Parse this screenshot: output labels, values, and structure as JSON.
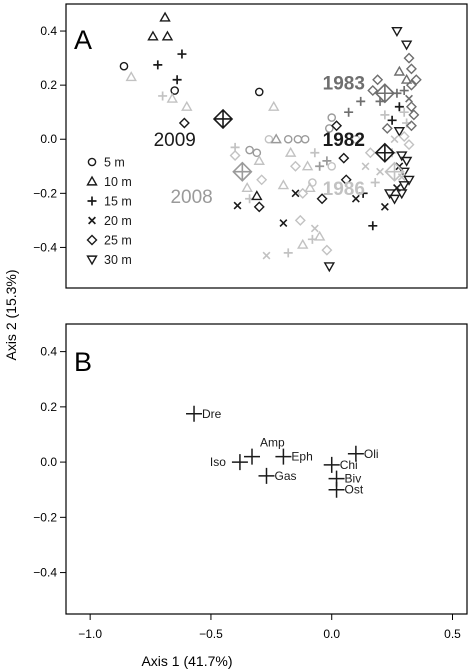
{
  "colors": {
    "black": "#1a1a1a",
    "dark_gray": "#6e6e6e",
    "mid_gray": "#9a9a9a",
    "light_gray": "#c2c2c2",
    "frame": "#000000"
  },
  "axes": {
    "y_label": "Axis 2 (15.3%)",
    "x_label": "Axis 1 (41.7%)",
    "x_ticks": [
      "−1.0",
      "−0.5",
      "0.0",
      "0.5"
    ],
    "x_tick_values": [
      -1.0,
      -0.5,
      0.0,
      0.5
    ],
    "y_ticks": [
      "0.4",
      "0.2",
      "0.0",
      "−0.2",
      "−0.4"
    ],
    "y_tick_values": [
      0.4,
      0.2,
      0.0,
      -0.2,
      -0.4
    ]
  },
  "chart_data": [
    {
      "type": "scatter",
      "panel_label": "A",
      "xlim": [
        -1.1,
        0.56
      ],
      "ylim": [
        -0.55,
        0.5
      ],
      "legend_position": "left",
      "legend": [
        {
          "label": "5 m",
          "marker": "circle"
        },
        {
          "label": "10 m",
          "marker": "triangle-up"
        },
        {
          "label": "15 m",
          "marker": "plus"
        },
        {
          "label": "20 m",
          "marker": "cross"
        },
        {
          "label": "25 m",
          "marker": "diamond"
        },
        {
          "label": "30 m",
          "marker": "triangle-down"
        }
      ],
      "year_labels": [
        {
          "text": "1983",
          "x": 0.05,
          "y": 0.21,
          "shade": "dark_gray"
        },
        {
          "text": "2009",
          "x": -0.65,
          "y": 0.0,
          "shade": "black"
        },
        {
          "text": "1982",
          "x": 0.05,
          "y": 0.0,
          "shade": "black"
        },
        {
          "text": "2008",
          "x": -0.58,
          "y": -0.21,
          "shade": "mid_gray"
        },
        {
          "text": "1986",
          "x": 0.05,
          "y": -0.18,
          "shade": "light_gray"
        }
      ],
      "centroids": [
        {
          "x": -0.45,
          "y": 0.075,
          "shade": "black"
        },
        {
          "x": -0.37,
          "y": -0.12,
          "shade": "mid_gray"
        },
        {
          "x": 0.22,
          "y": -0.05,
          "shade": "black"
        },
        {
          "x": 0.22,
          "y": 0.17,
          "shade": "dark_gray"
        },
        {
          "x": 0.26,
          "y": -0.12,
          "shade": "light_gray"
        }
      ],
      "points": [
        {
          "x": -0.86,
          "y": 0.27,
          "m": "circle",
          "s": "black"
        },
        {
          "x": -0.83,
          "y": 0.23,
          "m": "triangle-up",
          "s": "light_gray"
        },
        {
          "x": -0.74,
          "y": 0.38,
          "m": "triangle-up",
          "s": "black"
        },
        {
          "x": -0.69,
          "y": 0.45,
          "m": "triangle-up",
          "s": "black"
        },
        {
          "x": -0.68,
          "y": 0.38,
          "m": "triangle-up",
          "s": "black"
        },
        {
          "x": -0.72,
          "y": 0.275,
          "m": "plus",
          "s": "black"
        },
        {
          "x": -0.62,
          "y": 0.315,
          "m": "plus",
          "s": "black"
        },
        {
          "x": -0.64,
          "y": 0.22,
          "m": "plus",
          "s": "black"
        },
        {
          "x": -0.65,
          "y": 0.18,
          "m": "circle",
          "s": "black"
        },
        {
          "x": -0.66,
          "y": 0.15,
          "m": "triangle-up",
          "s": "light_gray"
        },
        {
          "x": -0.7,
          "y": 0.16,
          "m": "plus",
          "s": "light_gray"
        },
        {
          "x": -0.6,
          "y": 0.12,
          "m": "triangle-up",
          "s": "light_gray"
        },
        {
          "x": -0.61,
          "y": 0.06,
          "m": "diamond",
          "s": "black"
        },
        {
          "x": -0.3,
          "y": 0.175,
          "m": "circle",
          "s": "black"
        },
        {
          "x": -0.24,
          "y": 0.12,
          "m": "triangle-up",
          "s": "light_gray"
        },
        {
          "x": -0.4,
          "y": -0.06,
          "m": "diamond",
          "s": "light_gray"
        },
        {
          "x": -0.4,
          "y": -0.03,
          "m": "plus",
          "s": "light_gray"
        },
        {
          "x": -0.34,
          "y": -0.04,
          "m": "circle",
          "s": "mid_gray"
        },
        {
          "x": -0.31,
          "y": -0.05,
          "m": "circle",
          "s": "mid_gray"
        },
        {
          "x": -0.3,
          "y": -0.08,
          "m": "triangle-up",
          "s": "light_gray"
        },
        {
          "x": -0.29,
          "y": -0.15,
          "m": "diamond",
          "s": "light_gray"
        },
        {
          "x": -0.35,
          "y": -0.18,
          "m": "triangle-up",
          "s": "light_gray"
        },
        {
          "x": -0.39,
          "y": -0.245,
          "m": "cross",
          "s": "black"
        },
        {
          "x": -0.34,
          "y": -0.22,
          "m": "plus",
          "s": "light_gray"
        },
        {
          "x": -0.31,
          "y": -0.21,
          "m": "triangle-up",
          "s": "black"
        },
        {
          "x": -0.3,
          "y": -0.25,
          "m": "diamond",
          "s": "black"
        },
        {
          "x": -0.26,
          "y": 0.0,
          "m": "circle",
          "s": "light_gray"
        },
        {
          "x": -0.23,
          "y": 0.0,
          "m": "triangle-up",
          "s": "mid_gray"
        },
        {
          "x": -0.17,
          "y": -0.05,
          "m": "triangle-up",
          "s": "light_gray"
        },
        {
          "x": -0.15,
          "y": -0.1,
          "m": "diamond",
          "s": "light_gray"
        },
        {
          "x": -0.1,
          "y": -0.1,
          "m": "triangle-up",
          "s": "light_gray"
        },
        {
          "x": -0.09,
          "y": -0.18,
          "m": "triangle-up",
          "s": "light_gray"
        },
        {
          "x": -0.08,
          "y": -0.16,
          "m": "circle",
          "s": "light_gray"
        },
        {
          "x": -0.15,
          "y": -0.2,
          "m": "cross",
          "s": "black"
        },
        {
          "x": -0.04,
          "y": -0.22,
          "m": "diamond",
          "s": "black"
        },
        {
          "x": -0.2,
          "y": -0.31,
          "m": "cross",
          "s": "black"
        },
        {
          "x": -0.13,
          "y": -0.3,
          "m": "diamond",
          "s": "light_gray"
        },
        {
          "x": -0.07,
          "y": -0.33,
          "m": "cross",
          "s": "light_gray"
        },
        {
          "x": -0.08,
          "y": -0.37,
          "m": "plus",
          "s": "light_gray"
        },
        {
          "x": -0.12,
          "y": -0.39,
          "m": "triangle-up",
          "s": "light_gray"
        },
        {
          "x": -0.18,
          "y": -0.42,
          "m": "plus",
          "s": "light_gray"
        },
        {
          "x": -0.27,
          "y": -0.43,
          "m": "cross",
          "s": "light_gray"
        },
        {
          "x": -0.2,
          "y": -0.17,
          "m": "triangle-up",
          "s": "light_gray"
        },
        {
          "x": -0.12,
          "y": -0.2,
          "m": "diamond",
          "s": "light_gray"
        },
        {
          "x": -0.05,
          "y": -0.36,
          "m": "triangle-up",
          "s": "light_gray"
        },
        {
          "x": -0.02,
          "y": -0.41,
          "m": "diamond",
          "s": "light_gray"
        },
        {
          "x": -0.14,
          "y": 0.0,
          "m": "circle",
          "s": "mid_gray"
        },
        {
          "x": -0.11,
          "y": 0.0,
          "m": "circle",
          "s": "mid_gray"
        },
        {
          "x": -0.18,
          "y": 0.0,
          "m": "circle",
          "s": "mid_gray"
        },
        {
          "x": -0.05,
          "y": -0.1,
          "m": "plus",
          "s": "mid_gray"
        },
        {
          "x": -0.02,
          "y": -0.08,
          "m": "plus",
          "s": "mid_gray"
        },
        {
          "x": -0.07,
          "y": -0.05,
          "m": "plus",
          "s": "light_gray"
        },
        {
          "x": -0.01,
          "y": 0.04,
          "m": "circle",
          "s": "mid_gray"
        },
        {
          "x": 0.0,
          "y": 0.08,
          "m": "circle",
          "s": "mid_gray"
        },
        {
          "x": 0.02,
          "y": 0.05,
          "m": "diamond",
          "s": "black"
        },
        {
          "x": 0.05,
          "y": -0.07,
          "m": "diamond",
          "s": "black"
        },
        {
          "x": 0.06,
          "y": -0.15,
          "m": "diamond",
          "s": "black"
        },
        {
          "x": 0.1,
          "y": -0.22,
          "m": "cross",
          "s": "black"
        },
        {
          "x": 0.13,
          "y": -0.2,
          "m": "plus",
          "s": "black"
        },
        {
          "x": 0.17,
          "y": -0.32,
          "m": "plus",
          "s": "black"
        },
        {
          "x": 0.2,
          "y": -0.12,
          "m": "cross",
          "s": "light_gray"
        },
        {
          "x": -0.01,
          "y": -0.47,
          "m": "triangle-down",
          "s": "black"
        },
        {
          "x": 0.0,
          "y": -0.1,
          "m": "circle",
          "s": "light_gray"
        },
        {
          "x": 0.07,
          "y": 0.1,
          "m": "plus",
          "s": "dark_gray"
        },
        {
          "x": 0.12,
          "y": 0.14,
          "m": "plus",
          "s": "dark_gray"
        },
        {
          "x": 0.17,
          "y": 0.18,
          "m": "diamond",
          "s": "dark_gray"
        },
        {
          "x": 0.19,
          "y": 0.22,
          "m": "diamond",
          "s": "dark_gray"
        },
        {
          "x": 0.2,
          "y": 0.14,
          "m": "plus",
          "s": "dark_gray"
        },
        {
          "x": 0.23,
          "y": 0.04,
          "m": "diamond",
          "s": "dark_gray"
        },
        {
          "x": 0.25,
          "y": 0.07,
          "m": "plus",
          "s": "black"
        },
        {
          "x": 0.28,
          "y": 0.12,
          "m": "plus",
          "s": "black"
        },
        {
          "x": 0.27,
          "y": 0.4,
          "m": "triangle-down",
          "s": "black"
        },
        {
          "x": 0.31,
          "y": 0.35,
          "m": "triangle-down",
          "s": "black"
        },
        {
          "x": 0.32,
          "y": 0.3,
          "m": "diamond",
          "s": "dark_gray"
        },
        {
          "x": 0.33,
          "y": 0.26,
          "m": "diamond",
          "s": "dark_gray"
        },
        {
          "x": 0.31,
          "y": 0.22,
          "m": "triangle-up",
          "s": "dark_gray"
        },
        {
          "x": 0.33,
          "y": 0.2,
          "m": "diamond",
          "s": "dark_gray"
        },
        {
          "x": 0.35,
          "y": 0.22,
          "m": "diamond",
          "s": "dark_gray"
        },
        {
          "x": 0.3,
          "y": 0.18,
          "m": "plus",
          "s": "dark_gray"
        },
        {
          "x": 0.32,
          "y": 0.15,
          "m": "cross",
          "s": "dark_gray"
        },
        {
          "x": 0.33,
          "y": 0.12,
          "m": "diamond",
          "s": "dark_gray"
        },
        {
          "x": 0.3,
          "y": 0.1,
          "m": "plus",
          "s": "light_gray"
        },
        {
          "x": 0.34,
          "y": 0.09,
          "m": "diamond",
          "s": "dark_gray"
        },
        {
          "x": 0.31,
          "y": 0.06,
          "m": "plus",
          "s": "light_gray"
        },
        {
          "x": 0.33,
          "y": 0.05,
          "m": "diamond",
          "s": "dark_gray"
        },
        {
          "x": 0.28,
          "y": 0.03,
          "m": "triangle-down",
          "s": "black"
        },
        {
          "x": 0.3,
          "y": 0.01,
          "m": "diamond",
          "s": "light_gray"
        },
        {
          "x": 0.26,
          "y": 0.0,
          "m": "cross",
          "s": "light_gray"
        },
        {
          "x": 0.32,
          "y": -0.02,
          "m": "diamond",
          "s": "light_gray"
        },
        {
          "x": 0.29,
          "y": -0.06,
          "m": "triangle-down",
          "s": "black"
        },
        {
          "x": 0.31,
          "y": -0.08,
          "m": "triangle-down",
          "s": "black"
        },
        {
          "x": 0.28,
          "y": -0.1,
          "m": "cross",
          "s": "black"
        },
        {
          "x": 0.3,
          "y": -0.12,
          "m": "triangle-down",
          "s": "black"
        },
        {
          "x": 0.32,
          "y": -0.15,
          "m": "triangle-down",
          "s": "black"
        },
        {
          "x": 0.3,
          "y": -0.17,
          "m": "triangle-down",
          "s": "black"
        },
        {
          "x": 0.27,
          "y": -0.18,
          "m": "cross",
          "s": "black"
        },
        {
          "x": 0.29,
          "y": -0.2,
          "m": "triangle-down",
          "s": "black"
        },
        {
          "x": 0.26,
          "y": -0.22,
          "m": "triangle-down",
          "s": "black"
        },
        {
          "x": 0.22,
          "y": -0.25,
          "m": "cross",
          "s": "black"
        },
        {
          "x": 0.24,
          "y": -0.2,
          "m": "triangle-down",
          "s": "black"
        },
        {
          "x": 0.18,
          "y": -0.16,
          "m": "plus",
          "s": "light_gray"
        },
        {
          "x": 0.14,
          "y": -0.1,
          "m": "cross",
          "s": "light_gray"
        },
        {
          "x": 0.25,
          "y": -0.05,
          "m": "plus",
          "s": "light_gray"
        },
        {
          "x": 0.22,
          "y": 0.09,
          "m": "plus",
          "s": "light_gray"
        },
        {
          "x": 0.27,
          "y": 0.17,
          "m": "plus",
          "s": "dark_gray"
        },
        {
          "x": 0.28,
          "y": 0.25,
          "m": "triangle-up",
          "s": "dark_gray"
        },
        {
          "x": 0.29,
          "y": -0.14,
          "m": "cross",
          "s": "light_gray"
        },
        {
          "x": 0.16,
          "y": -0.05,
          "m": "diamond",
          "s": "light_gray"
        },
        {
          "x": 0.1,
          "y": 0.0,
          "m": "circle",
          "s": "light_gray"
        }
      ]
    },
    {
      "type": "scatter",
      "panel_label": "B",
      "xlim": [
        -1.1,
        0.56
      ],
      "ylim": [
        -0.55,
        0.5
      ],
      "marker": "plus",
      "points": [
        {
          "label": "Dre",
          "x": -0.57,
          "y": 0.175
        },
        {
          "label": "Amp",
          "x": -0.33,
          "y": 0.02
        },
        {
          "label": "Iso",
          "x": -0.38,
          "y": 0.0
        },
        {
          "label": "Eph",
          "x": -0.2,
          "y": 0.02
        },
        {
          "label": "Gas",
          "x": -0.27,
          "y": -0.05
        },
        {
          "label": "Oli",
          "x": 0.1,
          "y": 0.03
        },
        {
          "label": "Chi",
          "x": 0.0,
          "y": -0.01
        },
        {
          "label": "Biv",
          "x": 0.02,
          "y": -0.06
        },
        {
          "label": "Ost",
          "x": 0.02,
          "y": -0.1
        }
      ]
    }
  ]
}
